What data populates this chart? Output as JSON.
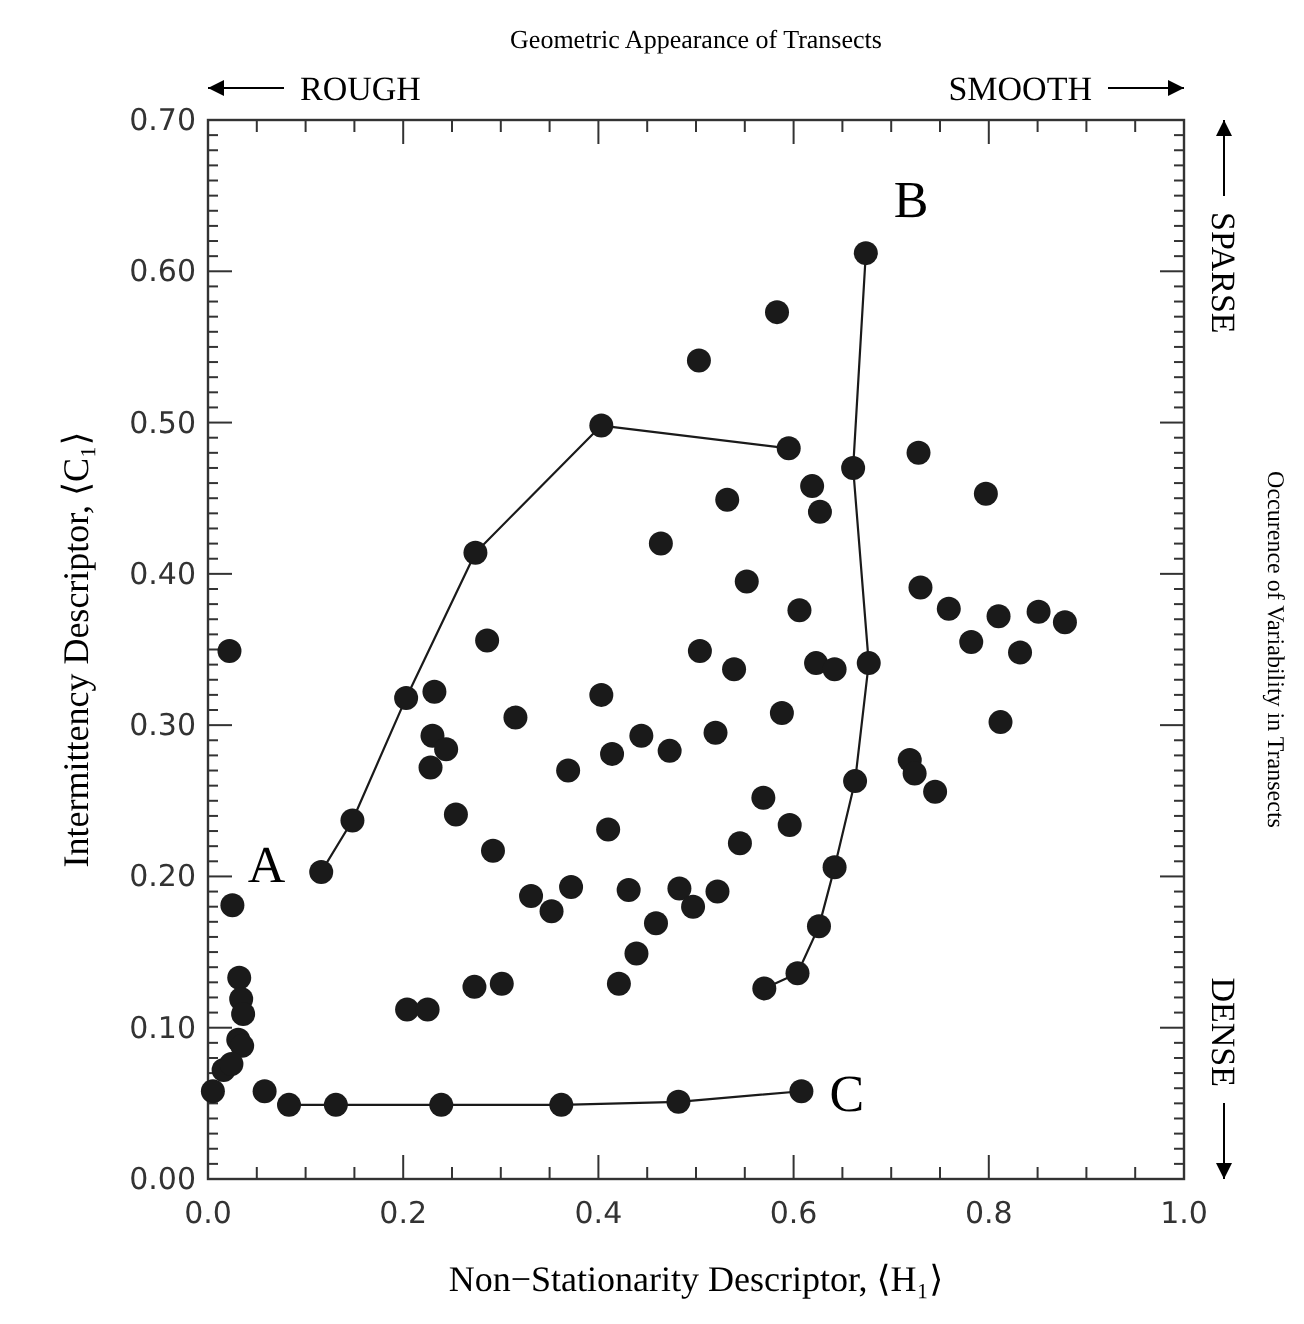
{
  "chart_data": {
    "type": "scatter",
    "title": "Geometric Appearance of Transects",
    "xlabel": "Non−Stationarity Descriptor, ⟨H₁⟩",
    "ylabel": "Intermittency Descriptor, ⟨C₁⟩",
    "y2label": "Occurence of Variability in Transects",
    "xlim": [
      0,
      1
    ],
    "ylim": [
      0,
      0.7
    ],
    "xticks": [
      {
        "value": 0,
        "label": "0.0"
      },
      {
        "value": 0.2,
        "label": "0.2"
      },
      {
        "value": 0.4,
        "label": "0.4"
      },
      {
        "value": 0.6,
        "label": "0.6"
      },
      {
        "value": 0.8,
        "label": "0.8"
      },
      {
        "value": 1,
        "label": "1.0"
      }
    ],
    "yticks": [
      {
        "value": 0,
        "label": "0.00"
      },
      {
        "value": 0.1,
        "label": "0.10"
      },
      {
        "value": 0.2,
        "label": "0.20"
      },
      {
        "value": 0.3,
        "label": "0.30"
      },
      {
        "value": 0.4,
        "label": "0.40"
      },
      {
        "value": 0.5,
        "label": "0.50"
      },
      {
        "value": 0.6,
        "label": "0.60"
      },
      {
        "value": 0.7,
        "label": "0.70"
      }
    ],
    "grid": false,
    "marker": "circle",
    "series": [
      {
        "color": "#1a1a1a",
        "x": [
          0.503,
          0.464,
          0.286,
          0.022,
          0.504,
          0.583,
          0.728,
          0.619,
          0.532,
          0.627,
          0.797,
          0.552,
          0.73,
          0.606,
          0.759,
          0.81,
          0.851,
          0.878,
          0.782,
          0.832,
          0.623,
          0.642,
          0.539,
          0.588,
          0.812,
          0.52,
          0.719,
          0.724,
          0.745,
          0.569,
          0.596,
          0.545,
          0.483,
          0.497,
          0.522,
          0.232,
          0.403,
          0.315,
          0.23,
          0.244,
          0.228,
          0.444,
          0.414,
          0.473,
          0.369,
          0.254,
          0.41,
          0.292,
          0.025,
          0.331,
          0.352,
          0.372,
          0.431,
          0.459,
          0.439,
          0.421,
          0.273,
          0.301,
          0.204,
          0.225,
          0.032,
          0.034,
          0.036,
          0.031,
          0.035,
          0.016,
          0.024,
          0.005,
          0.058
        ],
        "values": [
          0.541,
          0.42,
          0.356,
          0.349,
          0.349,
          0.573,
          0.48,
          0.458,
          0.449,
          0.441,
          0.453,
          0.395,
          0.391,
          0.376,
          0.377,
          0.372,
          0.375,
          0.368,
          0.355,
          0.348,
          0.341,
          0.337,
          0.337,
          0.308,
          0.302,
          0.295,
          0.277,
          0.268,
          0.256,
          0.252,
          0.234,
          0.222,
          0.192,
          0.18,
          0.19,
          0.322,
          0.32,
          0.305,
          0.293,
          0.284,
          0.272,
          0.293,
          0.281,
          0.283,
          0.27,
          0.241,
          0.231,
          0.217,
          0.181,
          0.187,
          0.177,
          0.193,
          0.191,
          0.169,
          0.149,
          0.129,
          0.127,
          0.129,
          0.112,
          0.112,
          0.133,
          0.119,
          0.109,
          0.092,
          0.088,
          0.072,
          0.076,
          0.058,
          0.058
        ]
      },
      {
        "type": "line",
        "color": "#1a1a1a",
        "x": [
          0.116,
          0.148,
          0.203,
          0.274,
          0.403,
          0.595
        ],
        "values": [
          0.203,
          0.237,
          0.318,
          0.414,
          0.498,
          0.483
        ]
      },
      {
        "type": "line",
        "color": "#1a1a1a",
        "x": [
          0.674,
          0.661,
          0.677,
          0.663,
          0.642,
          0.626,
          0.604,
          0.57
        ],
        "values": [
          0.612,
          0.47,
          0.341,
          0.263,
          0.206,
          0.167,
          0.136,
          0.126
        ]
      },
      {
        "type": "line",
        "color": "#1a1a1a",
        "x": [
          0.083,
          0.131,
          0.239,
          0.362,
          0.482,
          0.608
        ],
        "values": [
          0.049,
          0.049,
          0.049,
          0.049,
          0.051,
          0.058
        ]
      }
    ],
    "annotations": [
      {
        "text": "A",
        "x": 0.116,
        "y": 0.203
      },
      {
        "text": "B",
        "x": 0.674,
        "y": 0.612
      },
      {
        "text": "C",
        "x": 0.608,
        "y": 0.058
      },
      "ROUGH",
      "SMOOTH",
      "SPARSE",
      "DENSE"
    ]
  }
}
